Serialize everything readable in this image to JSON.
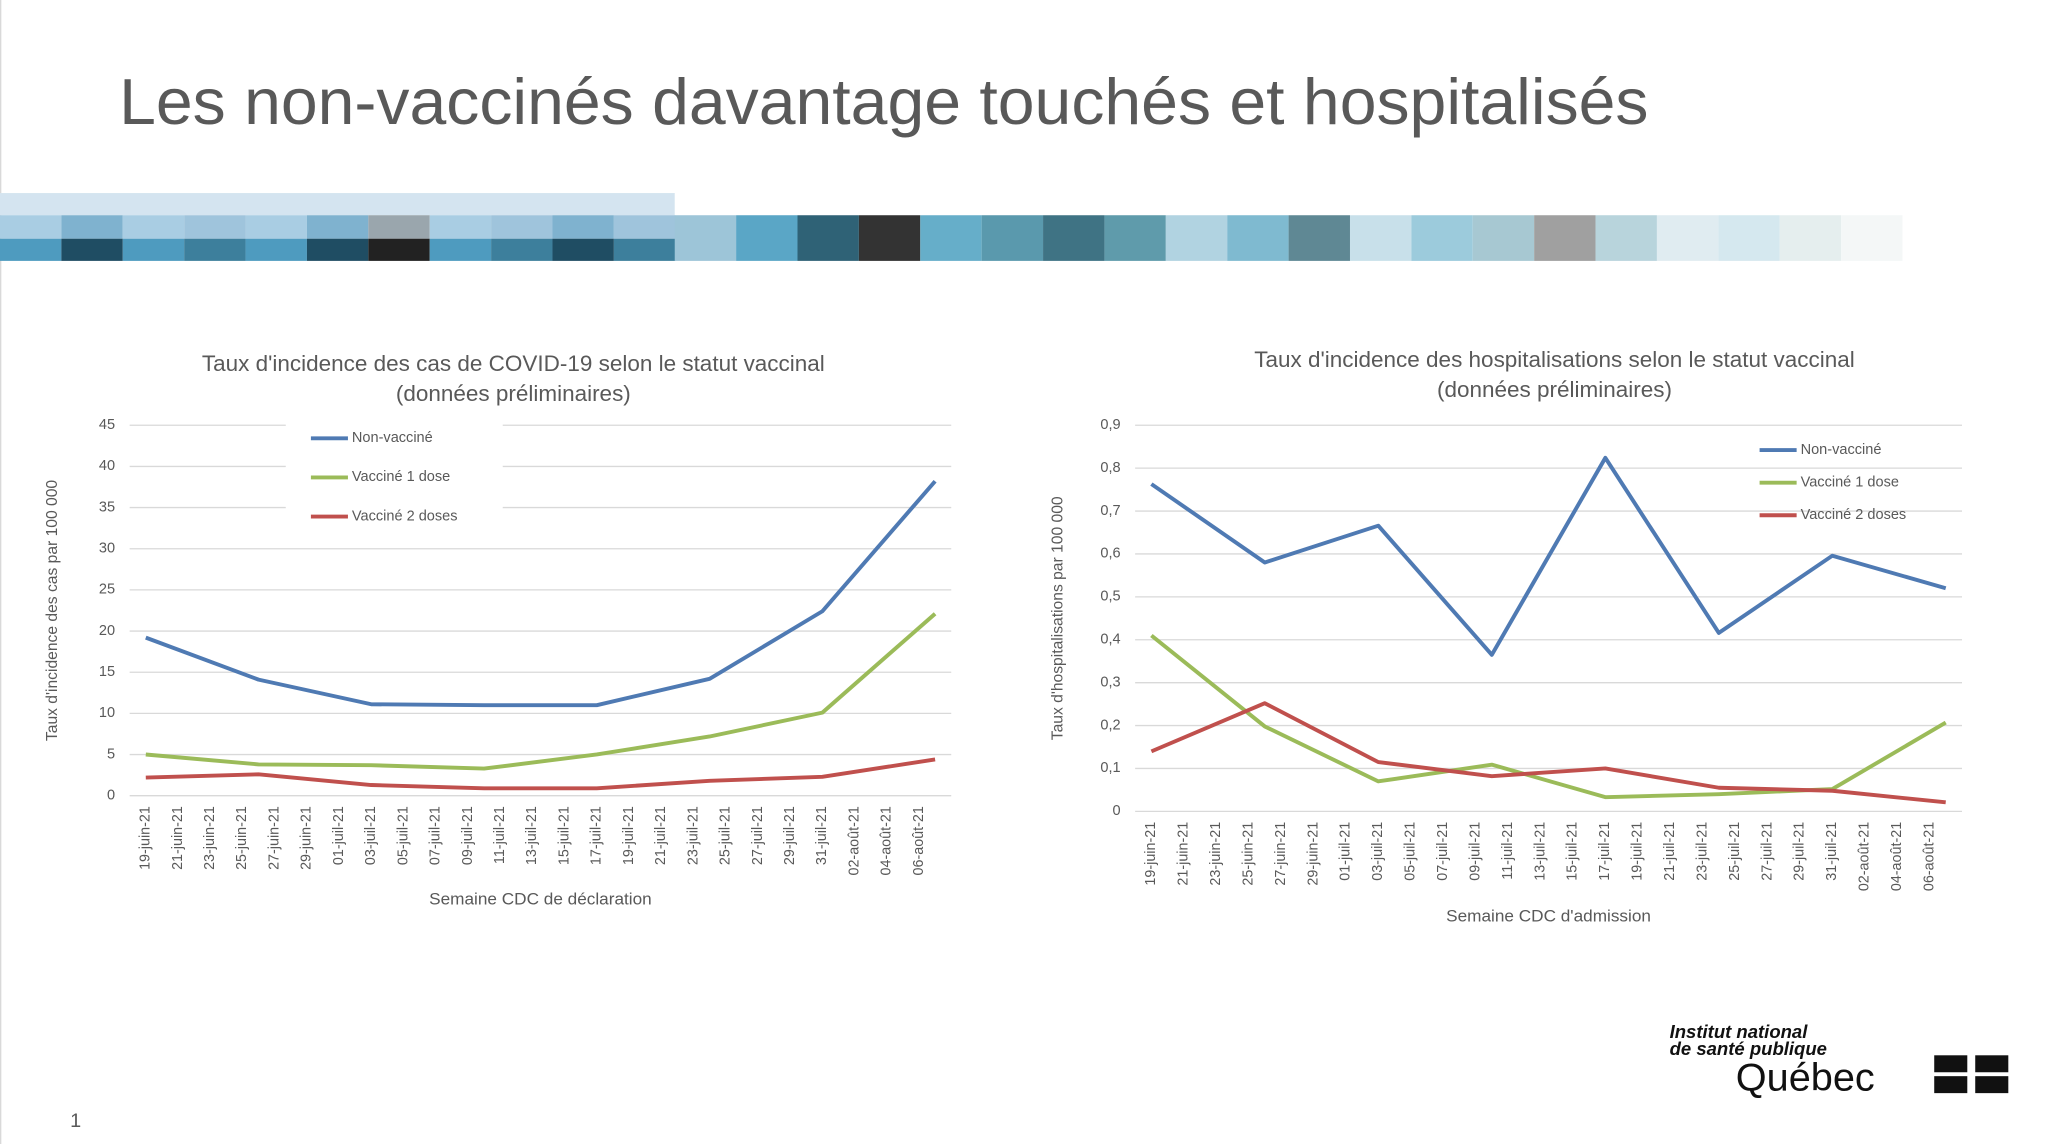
{
  "slide": {
    "title": "Les non-vaccinés davantage touchés et hospitalisés",
    "page_number": "1",
    "logo": [
      "Institut national",
      "de santé publique",
      "Québec"
    ]
  },
  "chart_data": [
    {
      "type": "line",
      "title": "Taux d'incidence des cas de COVID-19 selon le statut vaccinal",
      "subtitle": "(données préliminaires)",
      "x_label": "Semaine CDC de déclaration",
      "y_label": "Taux d'incidence des cas par 100 000",
      "x": [
        "2021-06-19",
        "2021-06-26",
        "2021-07-03",
        "2021-07-10",
        "2021-07-17",
        "2021-07-24",
        "2021-07-31",
        "2021-08-07"
      ],
      "series": [
        {
          "name": "Non-vacciné",
          "color": "#4f7ab3",
          "values": [
            19.2,
            14.1,
            11.1,
            11.0,
            11.0,
            14.2,
            22.4,
            38.2
          ]
        },
        {
          "name": "Vacciné 1 dose",
          "color": "#9bbb59",
          "values": [
            5.0,
            3.8,
            3.7,
            3.3,
            5.0,
            7.2,
            10.1,
            22.1
          ]
        },
        {
          "name": "Vacciné 2 doses",
          "color": "#c0504d",
          "values": [
            2.2,
            2.6,
            1.3,
            0.9,
            0.9,
            1.8,
            2.3,
            4.4
          ]
        }
      ],
      "xlim": [
        "2021-06-18",
        "2021-08-08"
      ],
      "xticks": [
        {
          "value": "2021-06-19",
          "label": "19-juin-21"
        },
        {
          "value": "2021-06-21",
          "label": "21-juin-21"
        },
        {
          "value": "2021-06-23",
          "label": "23-juin-21"
        },
        {
          "value": "2021-06-25",
          "label": "25-juin-21"
        },
        {
          "value": "2021-06-27",
          "label": "27-juin-21"
        },
        {
          "value": "2021-06-29",
          "label": "29-juin-21"
        },
        {
          "value": "2021-07-01",
          "label": "01-juil-21"
        },
        {
          "value": "2021-07-03",
          "label": "03-juil-21"
        },
        {
          "value": "2021-07-05",
          "label": "05-juil-21"
        },
        {
          "value": "2021-07-07",
          "label": "07-juil-21"
        },
        {
          "value": "2021-07-09",
          "label": "09-juil-21"
        },
        {
          "value": "2021-07-11",
          "label": "11-juil-21"
        },
        {
          "value": "2021-07-13",
          "label": "13-juil-21"
        },
        {
          "value": "2021-07-15",
          "label": "15-juil-21"
        },
        {
          "value": "2021-07-17",
          "label": "17-juil-21"
        },
        {
          "value": "2021-07-19",
          "label": "19-juil-21"
        },
        {
          "value": "2021-07-21",
          "label": "21-juil-21"
        },
        {
          "value": "2021-07-23",
          "label": "23-juil-21"
        },
        {
          "value": "2021-07-25",
          "label": "25-juil-21"
        },
        {
          "value": "2021-07-27",
          "label": "27-juil-21"
        },
        {
          "value": "2021-07-29",
          "label": "29-juil-21"
        },
        {
          "value": "2021-07-31",
          "label": "31-juil-21"
        },
        {
          "value": "2021-08-02",
          "label": "02-août-21"
        },
        {
          "value": "2021-08-04",
          "label": "04-août-21"
        },
        {
          "value": "2021-08-06",
          "label": "06-août-21"
        }
      ],
      "ylim": [
        0,
        45
      ],
      "yticks": [
        0,
        5,
        10,
        15,
        20,
        25,
        30,
        35,
        40,
        45
      ],
      "grid": true,
      "legend": "upper left"
    },
    {
      "type": "line",
      "title": "Taux d'incidence des hospitalisations selon le statut vaccinal",
      "subtitle": "(données préliminaires)",
      "x_label": "Semaine CDC d'admission",
      "y_label": "Taux d'hospitalisations par 100 000",
      "x": [
        "2021-06-19",
        "2021-06-26",
        "2021-07-03",
        "2021-07-10",
        "2021-07-17",
        "2021-07-24",
        "2021-07-31",
        "2021-08-07"
      ],
      "series": [
        {
          "name": "Non-vacciné",
          "color": "#4f7ab3",
          "values": [
            0.763,
            0.58,
            0.666,
            0.365,
            0.824,
            0.416,
            0.596,
            0.52
          ]
        },
        {
          "name": "Vacciné 1 dose",
          "color": "#9bbb59",
          "values": [
            0.41,
            0.198,
            0.07,
            0.109,
            0.033,
            0.04,
            0.052,
            0.207
          ]
        },
        {
          "name": "Vacciné 2 doses",
          "color": "#c0504d",
          "values": [
            0.14,
            0.252,
            0.115,
            0.082,
            0.1,
            0.055,
            0.048,
            0.021
          ]
        }
      ],
      "xlim": [
        "2021-06-18",
        "2021-08-08"
      ],
      "xticks": [
        {
          "value": "2021-06-19",
          "label": "19-juin-21"
        },
        {
          "value": "2021-06-21",
          "label": "21-juin-21"
        },
        {
          "value": "2021-06-23",
          "label": "23-juin-21"
        },
        {
          "value": "2021-06-25",
          "label": "25-juin-21"
        },
        {
          "value": "2021-06-27",
          "label": "27-juin-21"
        },
        {
          "value": "2021-06-29",
          "label": "29-juin-21"
        },
        {
          "value": "2021-07-01",
          "label": "01-juil-21"
        },
        {
          "value": "2021-07-03",
          "label": "03-juil-21"
        },
        {
          "value": "2021-07-05",
          "label": "05-juil-21"
        },
        {
          "value": "2021-07-07",
          "label": "07-juil-21"
        },
        {
          "value": "2021-07-09",
          "label": "09-juil-21"
        },
        {
          "value": "2021-07-11",
          "label": "11-juil-21"
        },
        {
          "value": "2021-07-13",
          "label": "13-juil-21"
        },
        {
          "value": "2021-07-15",
          "label": "15-juil-21"
        },
        {
          "value": "2021-07-17",
          "label": "17-juil-21"
        },
        {
          "value": "2021-07-19",
          "label": "19-juil-21"
        },
        {
          "value": "2021-07-21",
          "label": "21-juil-21"
        },
        {
          "value": "2021-07-23",
          "label": "23-juil-21"
        },
        {
          "value": "2021-07-25",
          "label": "25-juil-21"
        },
        {
          "value": "2021-07-27",
          "label": "27-juil-21"
        },
        {
          "value": "2021-07-29",
          "label": "29-juil-21"
        },
        {
          "value": "2021-07-31",
          "label": "31-juil-21"
        },
        {
          "value": "2021-08-02",
          "label": "02-août-21"
        },
        {
          "value": "2021-08-04",
          "label": "04-août-21"
        },
        {
          "value": "2021-08-06",
          "label": "06-août-21"
        }
      ],
      "ylim": [
        0,
        0.9
      ],
      "yticks": [
        0,
        {
          "value": 0.1,
          "label": "0,1"
        },
        {
          "value": 0.2,
          "label": "0,2"
        },
        {
          "value": 0.3,
          "label": "0,3"
        },
        {
          "value": 0.4,
          "label": "0,4"
        },
        {
          "value": 0.5,
          "label": "0,5"
        },
        {
          "value": 0.6,
          "label": "0,6"
        },
        {
          "value": 0.7,
          "label": "0,7"
        },
        {
          "value": 0.8,
          "label": "0,8"
        },
        {
          "value": 0.9,
          "label": "0,9"
        }
      ],
      "grid": true,
      "legend": "upper right"
    }
  ]
}
